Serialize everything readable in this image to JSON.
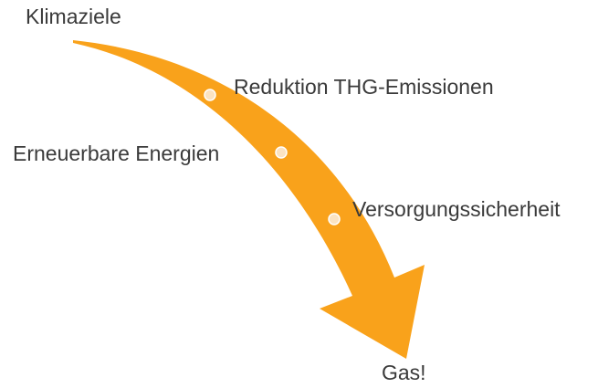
{
  "start": {
    "label": "Klimaziele"
  },
  "milestones": [
    {
      "label": "Reduktion THG-Emissionen"
    },
    {
      "label": "Erneuerbare Energien"
    },
    {
      "label": "Versorgungssicherheit"
    }
  ],
  "end": {
    "label": "Gas!"
  }
}
